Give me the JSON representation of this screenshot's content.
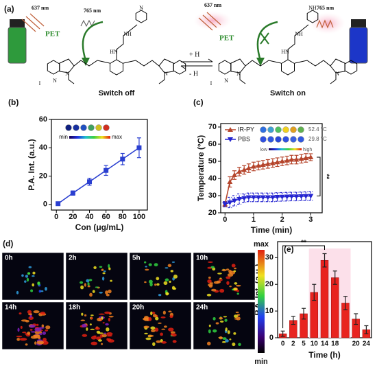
{
  "scheme": {
    "panel": "(a)",
    "wavelength_in": "637 nm",
    "wavelength_out": "765 nm",
    "pet": "PET",
    "left_label": "Switch off",
    "right_label": "Switch on",
    "forward": "+ H",
    "backward": "- H",
    "left_atoms": [
      "N",
      "HN",
      "NH",
      "N",
      "N",
      "N",
      "I"
    ],
    "right_atoms": [
      "NH",
      "HN",
      "NH",
      "N",
      "N",
      "N",
      "I"
    ]
  },
  "chart_data": [
    {
      "type": "line",
      "panel": "(b)",
      "x": [
        2,
        20,
        40,
        60,
        80,
        100
      ],
      "values": [
        0.5,
        8,
        16,
        24,
        32,
        40
      ],
      "errors": [
        1,
        1.5,
        2.5,
        3.5,
        4,
        7
      ],
      "color": "#2a3fd0",
      "xlabel": "Con (μg/mL)",
      "ylabel": "P.A. Int. (a.u.)",
      "xlim": [
        -6,
        110
      ],
      "xticks": [
        0,
        20,
        40,
        60,
        80,
        100
      ],
      "ylim": [
        -4,
        60
      ],
      "yticks": [
        0,
        20,
        40,
        60
      ],
      "inset": {
        "min": "min",
        "max": "max"
      }
    },
    {
      "type": "line",
      "panel": "(c)",
      "x": [
        0,
        0.17,
        0.33,
        0.5,
        0.67,
        0.83,
        1,
        1.17,
        1.33,
        1.5,
        1.67,
        1.83,
        2,
        2.17,
        2.33,
        2.5,
        2.67,
        2.83,
        3
      ],
      "series": [
        {
          "name": "IR-PY",
          "color": "#b5452c",
          "marker": "up",
          "values": [
            25,
            38,
            42,
            44,
            45,
            46,
            47,
            47.5,
            48,
            48.5,
            49,
            49.5,
            50,
            50.5,
            51,
            51,
            51.5,
            52,
            52.4
          ],
          "errors": [
            1.5,
            3,
            2.5,
            2.5,
            2.5,
            2.5,
            2.5,
            2.5,
            2.5,
            2.5,
            2.5,
            2.5,
            2.5,
            2.5,
            2.5,
            2.5,
            2.5,
            2.5,
            2
          ]
        },
        {
          "name": "PBS",
          "color": "#2424d0",
          "marker": "down",
          "values": [
            25,
            26,
            27,
            28,
            28.5,
            29,
            29,
            29,
            29,
            29,
            29,
            29.2,
            29.3,
            29.4,
            29.5,
            29.5,
            29.6,
            29.7,
            29.8
          ],
          "errors": [
            1.5,
            3,
            3,
            3,
            2.5,
            2.5,
            2.5,
            2.5,
            2.5,
            2.5,
            2.5,
            2.5,
            2.5,
            2.5,
            2.5,
            2.5,
            2.5,
            2.5,
            2.5
          ]
        }
      ],
      "xlabel": "Time (min)",
      "ylabel": "Temperature (°C)",
      "xlim": [
        -0.15,
        3.4
      ],
      "xticks": [
        0,
        1,
        2,
        3
      ],
      "ylim": [
        20,
        72
      ],
      "yticks": [
        20,
        30,
        40,
        50,
        60,
        70
      ],
      "legend": "upper left",
      "temp_labels": [
        "52.4 °C",
        "29.8 °C"
      ],
      "scale_labels": [
        "low",
        "high"
      ],
      "significance": "**"
    },
    {
      "type": "bar",
      "panel": "(e)",
      "categories": [
        "0",
        "2",
        "5",
        "10",
        "14",
        "18",
        null,
        "20",
        "24"
      ],
      "values": [
        1.5,
        6.5,
        9,
        17,
        29,
        22.5,
        13,
        7,
        3
      ],
      "errors": [
        1,
        1.5,
        2,
        3,
        2.5,
        2.5,
        2.5,
        2,
        1.5
      ],
      "color": "#e8231f",
      "xlabel": "Time (h)",
      "ylabel": "P.A. Int. (a.u.)",
      "ylim": [
        0,
        36
      ],
      "yticks": [
        0,
        10,
        20,
        30
      ],
      "significance": "**"
    }
  ],
  "images": {
    "panel": "(d)",
    "time_labels": [
      "0h",
      "2h",
      "5h",
      "10h",
      "14h",
      "18h",
      "20h",
      "24h"
    ],
    "colorbar": {
      "max": "max",
      "min": "min"
    }
  }
}
